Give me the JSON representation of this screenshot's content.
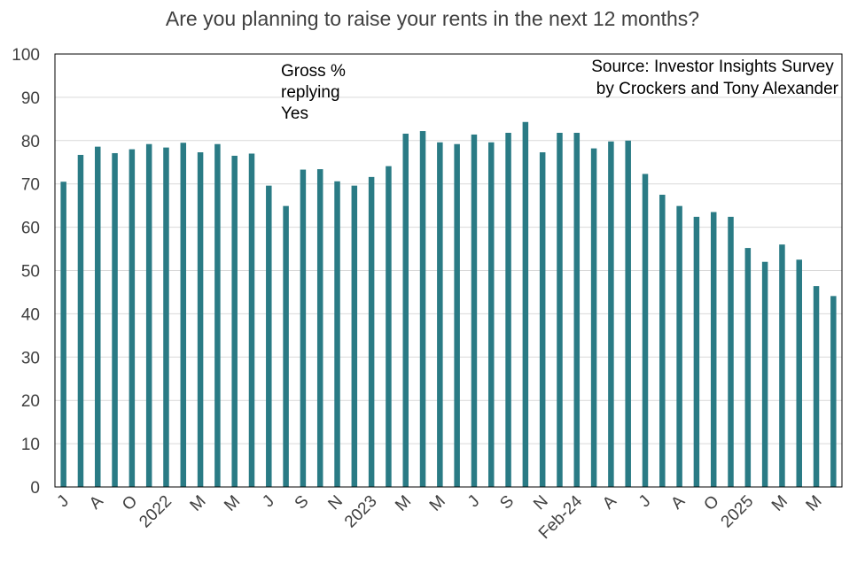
{
  "chart_data": {
    "type": "bar",
    "title": "Are you planning to raise your rents in the next 12 months?",
    "ylim": [
      0,
      100
    ],
    "yticks": [
      0,
      10,
      20,
      30,
      40,
      50,
      60,
      70,
      80,
      90,
      100
    ],
    "grid": true,
    "bar_color": "#2a7b85",
    "annotation_lines": [
      "Gross %",
      "replying",
      "Yes"
    ],
    "source_lines": [
      "Source: Investor Insights Survey",
      "by Crockers and Tony Alexander"
    ],
    "x_tick_labels": [
      "J",
      "A",
      "O",
      "2022",
      "M",
      "M",
      "J",
      "S",
      "N",
      "2023",
      "M",
      "M",
      "J",
      "S",
      "N",
      "Feb-24",
      "A",
      "J",
      "A",
      "O",
      "2025",
      "M",
      "M"
    ],
    "values": [
      70.5,
      76.7,
      78.6,
      77.1,
      78.0,
      79.2,
      78.4,
      79.5,
      77.3,
      79.2,
      76.5,
      77.0,
      69.6,
      64.9,
      73.3,
      73.4,
      70.6,
      69.6,
      71.6,
      74.1,
      81.6,
      82.2,
      79.6,
      79.2,
      81.4,
      79.6,
      81.8,
      84.3,
      77.3,
      81.8,
      81.8,
      78.2,
      79.8,
      80.0,
      72.3,
      67.5,
      64.9,
      62.4,
      63.5,
      62.4,
      55.2,
      52.0,
      56.0,
      52.5,
      46.4,
      44.1
    ]
  }
}
